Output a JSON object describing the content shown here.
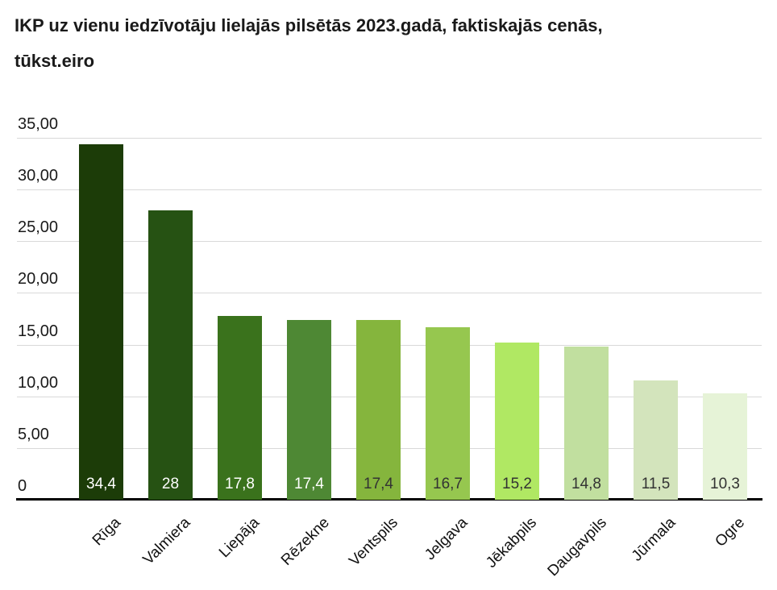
{
  "title": {
    "lines": [
      "IKP uz vienu iedzīvotāju lielajās pilsētās 2023.gadā, faktiskajās cenās,",
      "tūkst.eiro"
    ]
  },
  "chart_data": {
    "type": "bar",
    "title": "IKP uz vienu iedzīvotāju lielajās pilsētās 2023.gadā, faktiskajās cenās, tūkst.eiro",
    "categories": [
      "Rīga",
      "Valmiera",
      "Liepāja",
      "Rēzekne",
      "Ventspils",
      "Jelgava",
      "Jēkabpils",
      "Daugavpils",
      "Jūrmala",
      "Ogre"
    ],
    "values": [
      34.4,
      28,
      17.8,
      17.4,
      17.4,
      16.7,
      15.2,
      14.8,
      11.5,
      10.3
    ],
    "bar_labels": [
      "34,4",
      "28",
      "17,8",
      "17,4",
      "17,4",
      "16,7",
      "15,2",
      "14,8",
      "11,5",
      "10,3"
    ],
    "bar_colors": [
      "#1c3c08",
      "#265213",
      "#3a721c",
      "#4e8834",
      "#85b53d",
      "#96c74f",
      "#b0e863",
      "#c1df9f",
      "#d3e4bc",
      "#e6f3d7"
    ],
    "bar_label_colors": [
      "#ffffff",
      "#ffffff",
      "#ffffff",
      "#ffffff",
      "#333333",
      "#333333",
      "#333333",
      "#333333",
      "#333333",
      "#333333"
    ],
    "y_ticks": [
      {
        "value": 35,
        "label": "35,00"
      },
      {
        "value": 30,
        "label": "30,00"
      },
      {
        "value": 25,
        "label": "25,00"
      },
      {
        "value": 20,
        "label": "20,00"
      },
      {
        "value": 15,
        "label": "15,00"
      },
      {
        "value": 10,
        "label": "10,00"
      },
      {
        "value": 5,
        "label": "5,00"
      },
      {
        "value": 0,
        "label": "0"
      }
    ],
    "ylim": [
      0,
      35
    ],
    "xlabel": "",
    "ylabel": "",
    "grid": true,
    "legend": false,
    "colors": {
      "gridline": "#d9d9d9",
      "axis": "#000000",
      "tick_text": "#1a1a1a",
      "category_text": "#111111",
      "background": "#ffffff"
    }
  }
}
